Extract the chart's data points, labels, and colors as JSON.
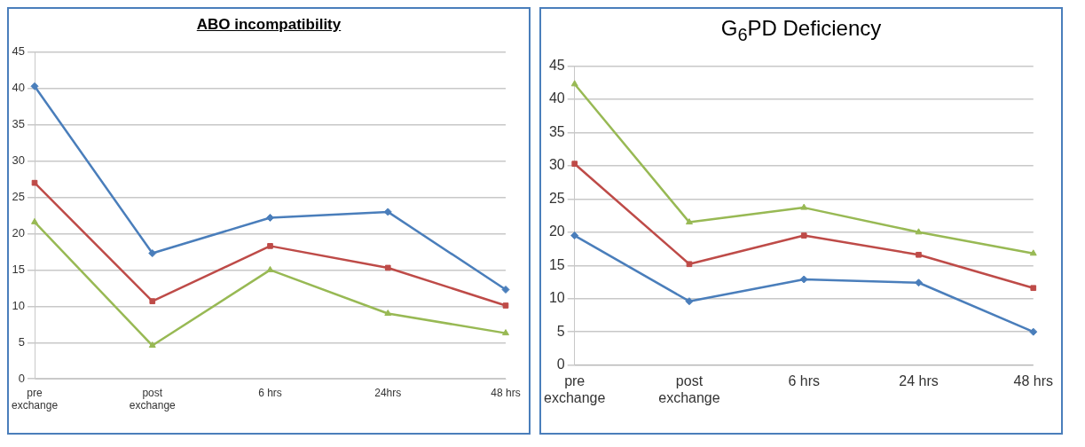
{
  "chart_data": [
    {
      "type": "line",
      "title": "ABO incompatibility",
      "categories": [
        "pre exchange",
        "post exchange",
        "6 hrs",
        "24hrs",
        "48 hrs"
      ],
      "ylim": [
        0,
        45
      ],
      "yticks": [
        0,
        5,
        10,
        15,
        20,
        25,
        30,
        35,
        40,
        45
      ],
      "grid": "y",
      "series": [
        {
          "color": "#4a7ebb",
          "marker": "diamond",
          "values": [
            40.3,
            17.3,
            22.2,
            23,
            12.3
          ]
        },
        {
          "color": "#be4b48",
          "marker": "square",
          "values": [
            27,
            10.7,
            18.3,
            15.3,
            10.1
          ]
        },
        {
          "color": "#98b954",
          "marker": "triangle",
          "values": [
            21.6,
            4.6,
            15,
            9,
            6.3
          ]
        }
      ]
    },
    {
      "type": "line",
      "title": "G$_{6}$PD Deficiency",
      "categories": [
        "pre exchange",
        "post exchange",
        "6 hrs",
        "24 hrs",
        "48 hrs"
      ],
      "ylim": [
        0,
        45
      ],
      "yticks": [
        0,
        5,
        10,
        15,
        20,
        25,
        30,
        35,
        40,
        45
      ],
      "grid": "y",
      "series": [
        {
          "color": "#4a7ebb",
          "marker": "diamond",
          "values": [
            19.5,
            9.6,
            12.9,
            12.4,
            5
          ]
        },
        {
          "color": "#be4b48",
          "marker": "square",
          "values": [
            30.3,
            15.2,
            19.5,
            16.6,
            11.6
          ]
        },
        {
          "color": "#98b954",
          "marker": "triangle",
          "values": [
            42.3,
            21.5,
            23.7,
            20,
            16.8
          ]
        }
      ]
    }
  ]
}
